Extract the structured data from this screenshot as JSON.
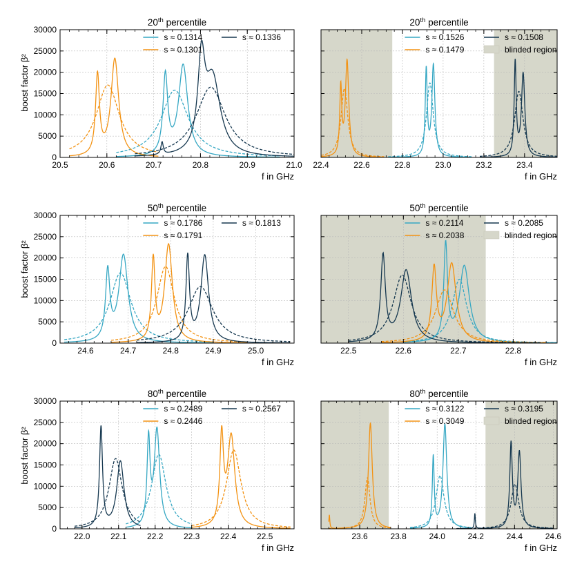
{
  "figure": {
    "ylabel": "boost factor β²",
    "xlabel": "f in GHz"
  },
  "colors": {
    "teal": "#35a7c3",
    "orange": "#f39212",
    "navy": "#15374f",
    "blinded": "#d6d7ca"
  },
  "chart_data": [
    {
      "type": "line",
      "title_base": "20",
      "title_sup": "th",
      "title_rest": " percentile",
      "xlim": [
        20.5,
        21.0
      ],
      "ylim": [
        0,
        30000
      ],
      "xticks": [
        "20.5",
        "20.6",
        "20.7",
        "20.8",
        "20.9",
        "21.0"
      ],
      "yticks": [
        "0",
        "5000",
        "10000",
        "15000",
        "20000",
        "25000",
        "30000"
      ],
      "blinded": [],
      "legend": [
        "s ≈ 0.1314",
        "s ≈ 0.1301",
        "s ≈ 0.1336"
      ],
      "series": [
        {
          "name": "s ≈ 0.1314",
          "color": "teal",
          "range": [
            20.62,
            20.97
          ],
          "solid": [
            [
              20.725,
              18500,
              0.006
            ],
            [
              20.763,
              21500,
              0.012
            ]
          ],
          "dashed": [
            [
              20.745,
              15800,
              0.035
            ]
          ]
        },
        {
          "name": "s ≈ 0.1301",
          "color": "orange",
          "range": [
            20.52,
            20.71
          ],
          "solid": [
            [
              20.58,
              18700,
              0.005
            ],
            [
              20.617,
              23000,
              0.01
            ]
          ],
          "dashed": [
            [
              20.602,
              17000,
              0.03
            ]
          ]
        },
        {
          "name": "s ≈ 0.1336",
          "color": "navy",
          "range": [
            20.66,
            21.0
          ],
          "solid": [
            [
              20.718,
              2900,
              0.003
            ],
            [
              20.802,
              20000,
              0.009
            ],
            [
              20.826,
              18000,
              0.02
            ]
          ],
          "dashed": [
            [
              20.822,
              16500,
              0.038
            ]
          ]
        }
      ]
    },
    {
      "type": "line",
      "title_base": "20",
      "title_sup": "th",
      "title_rest": " percentile",
      "xlim": [
        22.4,
        23.56
      ],
      "ylim": [
        0,
        30000
      ],
      "xticks": [
        "22.4",
        "22.6",
        "22.8",
        "23.0",
        "23.2",
        "23.4"
      ],
      "yticks": [],
      "blinded": [
        [
          22.4,
          22.75
        ],
        [
          23.25,
          23.56
        ]
      ],
      "legend": [
        "s ≈ 0.1526",
        "s ≈ 0.1479",
        "s ≈ 0.1508",
        "blinded region"
      ],
      "series": [
        {
          "name": "s ≈ 0.1526",
          "color": "teal",
          "range": [
            22.73,
            23.14
          ],
          "solid": [
            [
              22.917,
              20200,
              0.006
            ],
            [
              22.952,
              21500,
              0.009
            ]
          ],
          "dashed": [
            [
              22.935,
              17500,
              0.02
            ]
          ]
        },
        {
          "name": "s ≈ 0.1479",
          "color": "orange",
          "range": [
            22.4,
            22.71
          ],
          "solid": [
            [
              22.497,
              15800,
              0.006
            ],
            [
              22.528,
              22500,
              0.01
            ]
          ],
          "dashed": [
            [
              22.515,
              16200,
              0.02
            ]
          ]
        },
        {
          "name": "s ≈ 0.1508",
          "color": "navy",
          "range": [
            23.18,
            23.56
          ],
          "solid": [
            [
              23.354,
              22000,
              0.006
            ],
            [
              23.393,
              19500,
              0.01
            ]
          ],
          "dashed": [
            [
              23.372,
              15500,
              0.025
            ]
          ]
        }
      ]
    },
    {
      "type": "line",
      "title_base": "50",
      "title_sup": "th",
      "title_rest": " percentile",
      "xlim": [
        24.54,
        25.09
      ],
      "ylim": [
        0,
        30000
      ],
      "xticks": [
        "24.6",
        "24.7",
        "24.8",
        "24.9",
        "25.0"
      ],
      "yticks": [
        "0",
        "5000",
        "10000",
        "15000",
        "20000",
        "25000",
        "30000"
      ],
      "blinded": [],
      "legend": [
        "s ≈ 0.1786",
        "s ≈ 0.1791",
        "s ≈ 0.1813"
      ],
      "series": [
        {
          "name": "s ≈ 0.1786",
          "color": "teal",
          "range": [
            24.55,
            24.9
          ],
          "solid": [
            [
              24.652,
              16000,
              0.006
            ],
            [
              24.689,
              20500,
              0.013
            ]
          ],
          "dashed": [
            [
              24.682,
              16500,
              0.03
            ]
          ]
        },
        {
          "name": "s ≈ 0.1791",
          "color": "orange",
          "range": [
            24.66,
            24.98
          ],
          "solid": [
            [
              24.759,
              19000,
              0.005
            ],
            [
              24.795,
              23000,
              0.011
            ]
          ],
          "dashed": [
            [
              24.788,
              18000,
              0.025
            ]
          ]
        },
        {
          "name": "s ≈ 0.1813",
          "color": "navy",
          "range": [
            24.72,
            25.08
          ],
          "solid": [
            [
              24.84,
              19800,
              0.005
            ],
            [
              24.88,
              20500,
              0.011
            ]
          ],
          "dashed": [
            [
              24.87,
              13300,
              0.035
            ]
          ]
        }
      ]
    },
    {
      "type": "line",
      "title_base": "50",
      "title_sup": "th",
      "title_rest": " percentile",
      "xlim": [
        22.45,
        22.88
      ],
      "ylim": [
        0,
        30000
      ],
      "xticks": [
        "22.5",
        "22.6",
        "22.7",
        "22.8"
      ],
      "yticks": [],
      "blinded": [
        [
          22.45,
          22.75
        ]
      ],
      "legend": [
        "s ≈ 0.2114",
        "s ≈ 0.2038",
        "s ≈ 0.2085",
        "blinded region"
      ],
      "series": [
        {
          "name": "s ≈ 0.2114",
          "color": "teal",
          "range": [
            22.6,
            22.88
          ],
          "solid": [
            [
              22.677,
              22500,
              0.004
            ],
            [
              22.711,
              18000,
              0.011
            ]
          ],
          "dashed": [
            [
              22.702,
              15000,
              0.016
            ]
          ]
        },
        {
          "name": "s ≈ 0.2038",
          "color": "orange",
          "range": [
            22.56,
            22.86
          ],
          "solid": [
            [
              22.656,
              17000,
              0.005
            ],
            [
              22.688,
              18500,
              0.01
            ]
          ],
          "dashed": [
            [
              22.675,
              12500,
              0.02
            ]
          ]
        },
        {
          "name": "s ≈ 0.2085",
          "color": "navy",
          "range": [
            22.5,
            22.85
          ],
          "solid": [
            [
              22.563,
              20000,
              0.005
            ],
            [
              22.605,
              17000,
              0.012
            ]
          ],
          "dashed": [
            [
              22.598,
              16000,
              0.02
            ]
          ]
        }
      ]
    },
    {
      "type": "line",
      "title_base": "80",
      "title_sup": "th",
      "title_rest": " percentile",
      "xlim": [
        21.94,
        22.58
      ],
      "ylim": [
        0,
        30000
      ],
      "xticks": [
        "22.0",
        "22.1",
        "22.2",
        "22.3",
        "22.4",
        "22.5"
      ],
      "yticks": [
        "0",
        "5000",
        "10000",
        "15000",
        "20000",
        "25000",
        "30000"
      ],
      "blinded": [],
      "legend": [
        "s ≈ 0.2489",
        "s ≈ 0.2446",
        "s ≈ 0.2567"
      ],
      "series": [
        {
          "name": "s ≈ 0.2489",
          "color": "teal",
          "range": [
            22.12,
            22.3
          ],
          "solid": [
            [
              22.182,
              20000,
              0.005
            ],
            [
              22.205,
              23000,
              0.009
            ]
          ],
          "dashed": [
            [
              22.21,
              17500,
              0.024
            ]
          ]
        },
        {
          "name": "s ≈ 0.2446",
          "color": "orange",
          "range": [
            22.3,
            22.57
          ],
          "solid": [
            [
              22.382,
              20500,
              0.006
            ],
            [
              22.408,
              21500,
              0.012
            ]
          ],
          "dashed": [
            [
              22.415,
              18500,
              0.024
            ]
          ]
        },
        {
          "name": "s ≈ 0.2567",
          "color": "navy",
          "range": [
            21.98,
            22.16
          ],
          "solid": [
            [
              22.052,
              23500,
              0.005
            ],
            [
              22.105,
              15800,
              0.012
            ]
          ],
          "dashed": [
            [
              22.092,
              16500,
              0.022
            ]
          ]
        }
      ]
    },
    {
      "type": "line",
      "title_base": "80",
      "title_sup": "th",
      "title_rest": " percentile",
      "xlim": [
        23.4,
        24.62
      ],
      "ylim": [
        0,
        30000
      ],
      "xticks": [
        "23.6",
        "23.8",
        "24.0",
        "24.2",
        "24.4",
        "24.6"
      ],
      "yticks": [],
      "blinded": [
        [
          23.4,
          23.75
        ],
        [
          24.25,
          24.62
        ]
      ],
      "legend": [
        "s ≈ 0.3122",
        "s ≈ 0.3049",
        "s ≈ 0.3195",
        "blinded region"
      ],
      "series": [
        {
          "name": "s ≈ 0.3122",
          "color": "teal",
          "range": [
            23.86,
            24.18
          ],
          "solid": [
            [
              23.98,
              16500,
              0.006
            ],
            [
              24.04,
              24500,
              0.012
            ]
          ],
          "dashed": [
            [
              24.015,
              12500,
              0.025
            ]
          ]
        },
        {
          "name": "s ≈ 0.3049",
          "color": "orange",
          "range": [
            23.44,
            23.76
          ],
          "solid": [
            [
              23.443,
              3200,
              0.003
            ],
            [
              23.655,
              24800,
              0.012
            ]
          ],
          "dashed": [
            [
              23.64,
              12000,
              0.016
            ]
          ]
        },
        {
          "name": "s ≈ 0.3195",
          "color": "navy",
          "range": [
            24.1,
            24.6
          ],
          "solid": [
            [
              24.195,
              3600,
              0.003
            ],
            [
              24.382,
              19800,
              0.008
            ],
            [
              24.425,
              17800,
              0.01
            ]
          ],
          "dashed": [
            [
              24.402,
              10500,
              0.024
            ]
          ]
        }
      ]
    }
  ]
}
